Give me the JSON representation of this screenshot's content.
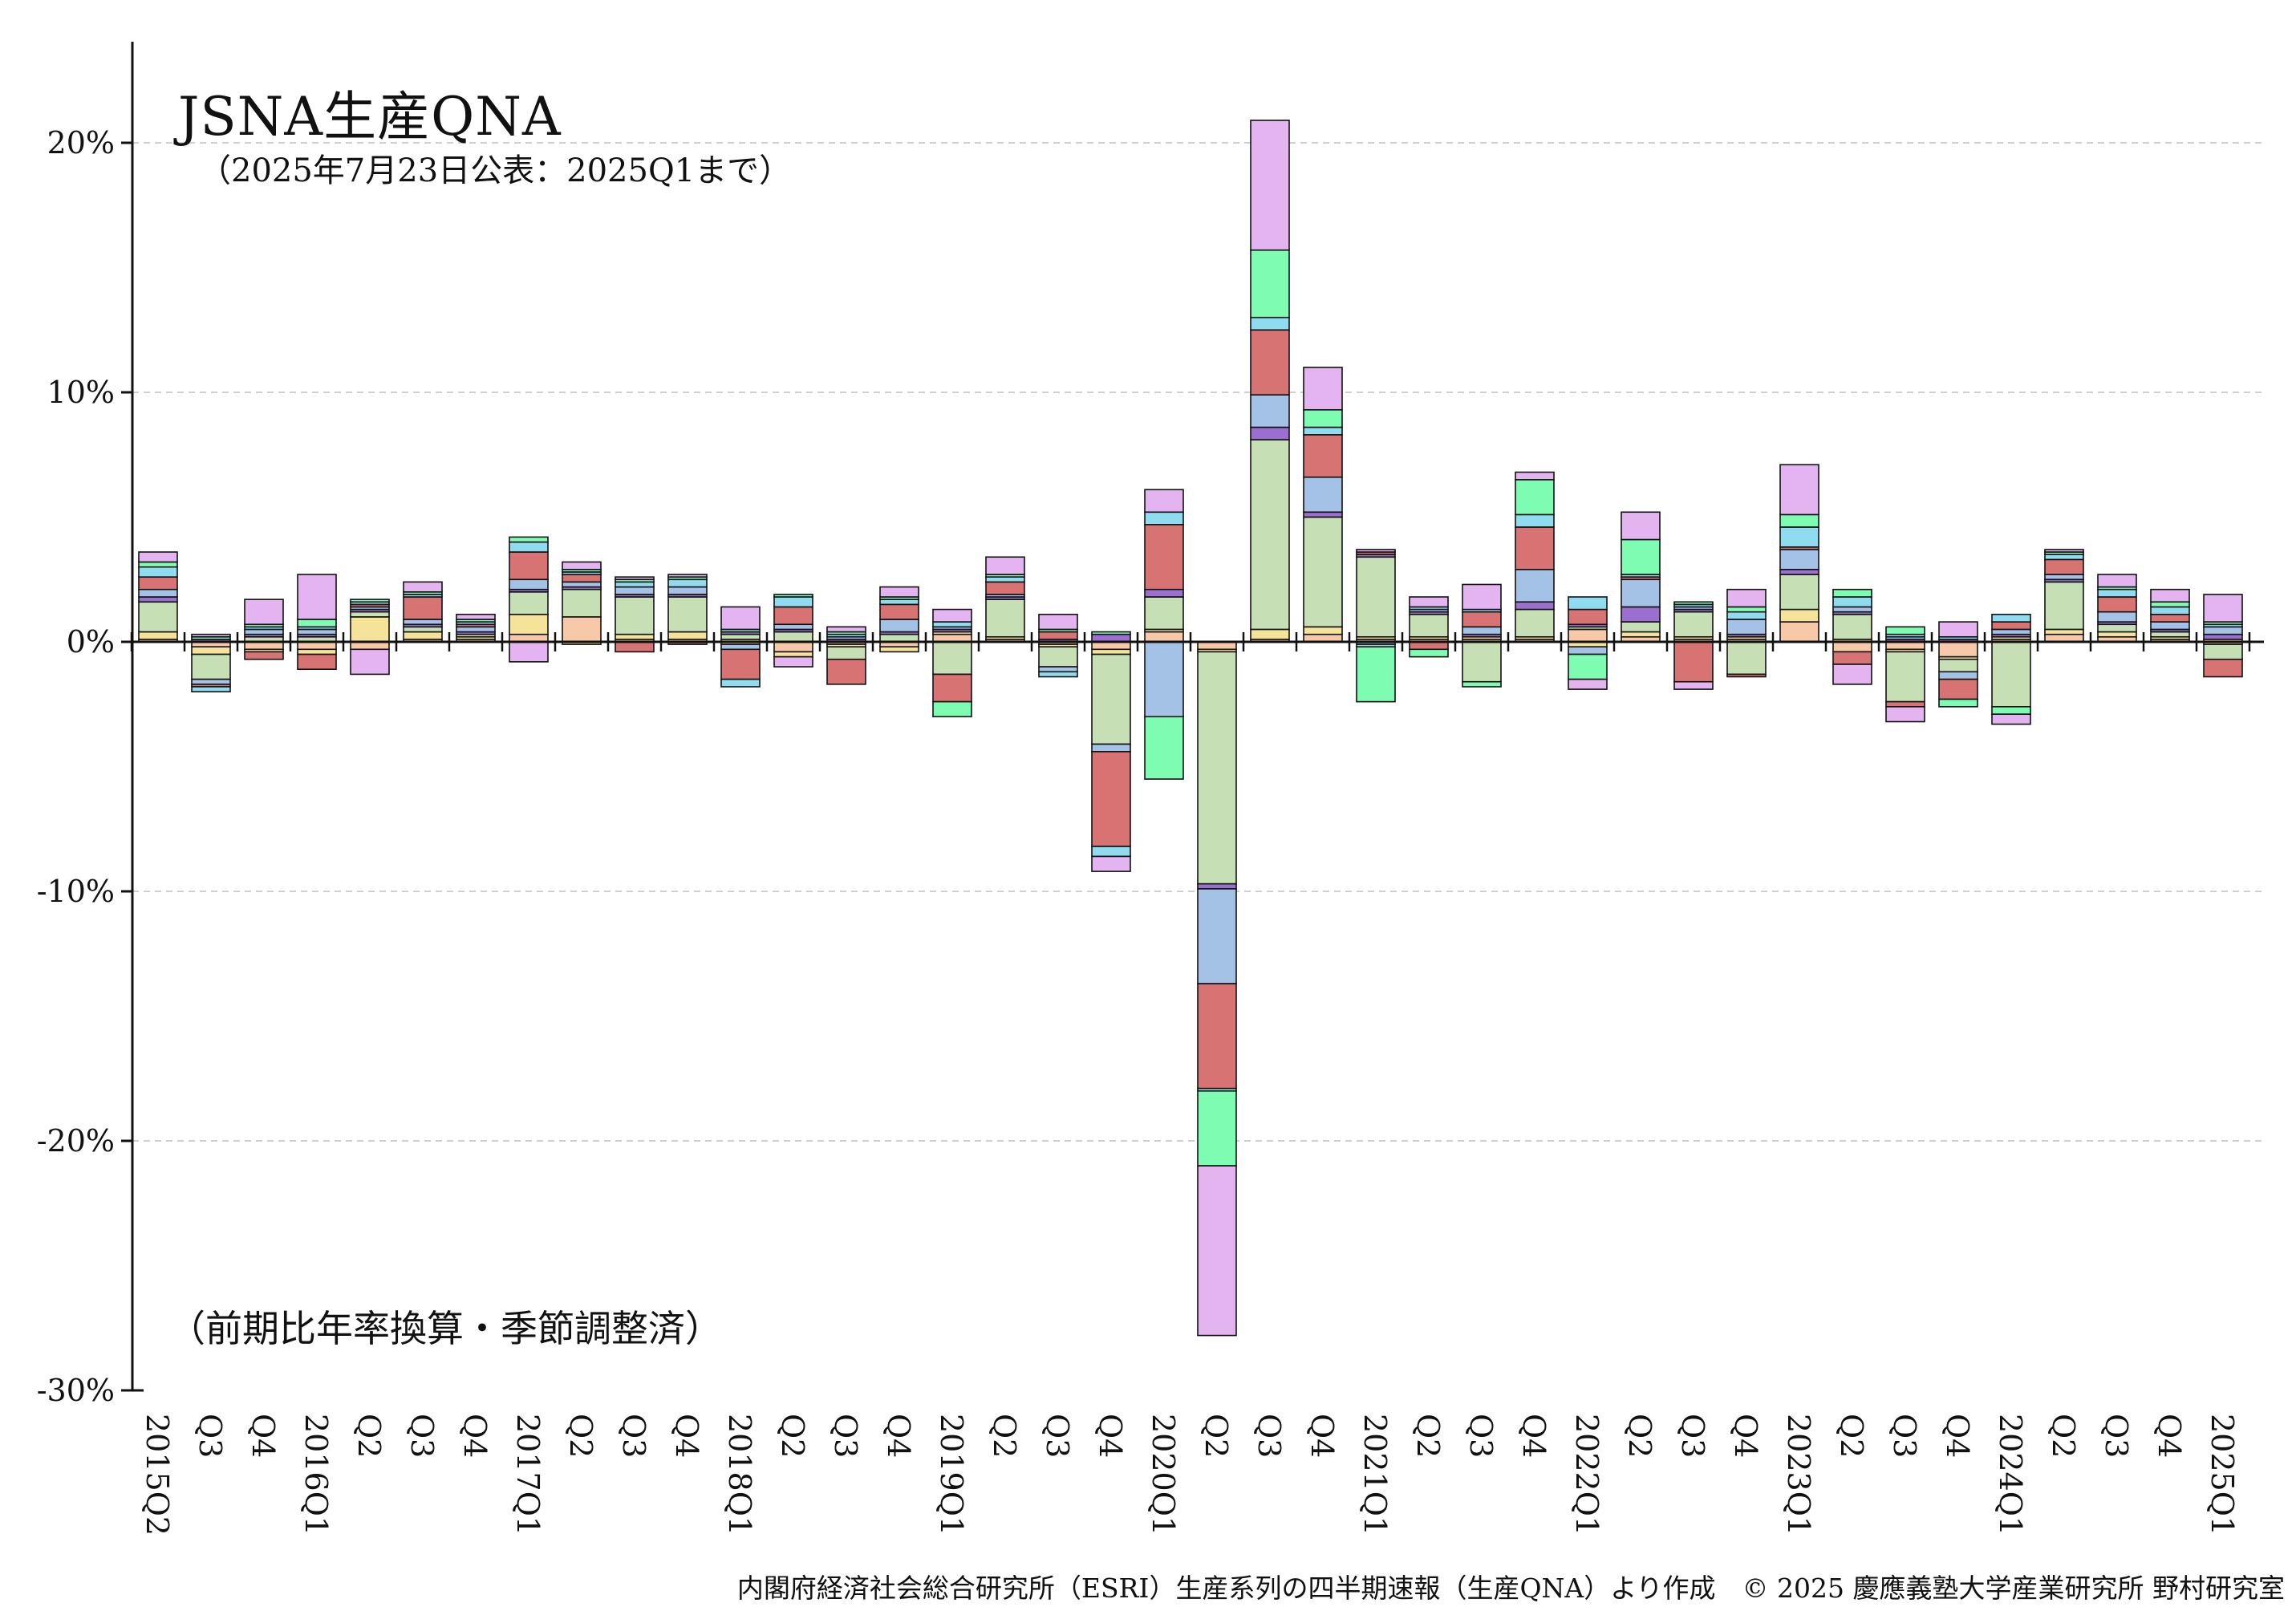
{
  "title": "JSNA生産QNA",
  "subtitle": "（2025年7月23日公表：2025Q1まで）",
  "note": "（前期比年率換算・季節調整済）",
  "source": "内閣府経済社会総合研究所（ESRI）生産系列の四半期速報（生産QNA）より作成　© 2025 慶應義塾大学産業研究所 野村研究室",
  "chart_data": {
    "type": "bar",
    "stacked": true,
    "grid": true,
    "ylim": [
      -30,
      24
    ],
    "yticks": [
      20,
      10,
      0,
      -10,
      -20,
      -30
    ],
    "ytick_labels": [
      "20%",
      "10%",
      "0%",
      "-10%",
      "-20%",
      "-30%"
    ],
    "categories": [
      "2015Q2",
      "Q3",
      "Q4",
      "2016Q1",
      "Q2",
      "Q3",
      "Q4",
      "2017Q1",
      "Q2",
      "Q3",
      "Q4",
      "2018Q1",
      "Q2",
      "Q3",
      "Q4",
      "2019Q1",
      "Q2",
      "Q3",
      "Q4",
      "2020Q1",
      "Q2",
      "Q3",
      "Q4",
      "2021Q1",
      "Q2",
      "Q3",
      "Q4",
      "2022Q1",
      "Q2",
      "Q3",
      "Q4",
      "2023Q1",
      "Q2",
      "Q3",
      "Q4",
      "2024Q1",
      "Q2",
      "Q3",
      "Q4",
      "2025Q1"
    ],
    "colors": [
      "#f7c9a8",
      "#f5e39a",
      "#c6dfb4",
      "#9a6fd0",
      "#a3c2e6",
      "#d77373",
      "#8fdcf0",
      "#7dfcb2",
      "#e3b4f0"
    ],
    "series": [
      {
        "values": [
          0.1,
          -0.2,
          -0.3,
          -0.3,
          -0.3,
          0.1,
          0.1,
          0.3,
          1.0,
          0.1,
          0.1,
          -0.1,
          -0.4,
          -0.1,
          -0.2,
          0.3,
          0.1,
          -0.1,
          -0.3,
          0.4,
          -0.3,
          0.1,
          0.3,
          0.1,
          0.1,
          0.1,
          0.1,
          0.5,
          0.2,
          0.1,
          0.1,
          0.8,
          -0.4,
          -0.3,
          -0.6,
          0.1,
          0.3,
          0.2,
          0.1,
          -0.1
        ]
      },
      {
        "values": [
          0.3,
          -0.3,
          -0.1,
          -0.2,
          1.0,
          0.3,
          0.1,
          0.8,
          -0.1,
          0.2,
          0.3,
          0.1,
          -0.2,
          -0.1,
          -0.2,
          0.1,
          0.1,
          -0.1,
          -0.2,
          0.1,
          -0.1,
          0.4,
          0.3,
          0.1,
          0.1,
          0.1,
          0.1,
          -0.2,
          0.2,
          0.1,
          0.1,
          0.5,
          0.1,
          -0.1,
          -0.1,
          0.1,
          0.2,
          0.2,
          0.1,
          0.1
        ]
      },
      {
        "values": [
          1.2,
          -1.0,
          0.2,
          0.2,
          0.2,
          0.2,
          0.1,
          0.9,
          1.1,
          1.5,
          1.4,
          0.2,
          0.4,
          -0.5,
          0.3,
          -1.3,
          1.5,
          -0.8,
          -3.6,
          1.3,
          -9.3,
          7.6,
          4.4,
          3.2,
          0.9,
          -1.6,
          1.1,
          0.1,
          0.4,
          1.0,
          -1.3,
          1.4,
          1.0,
          -2.0,
          -0.5,
          -2.6,
          1.9,
          0.3,
          0.2,
          -0.6
        ]
      },
      {
        "values": [
          0.2,
          0.1,
          0.1,
          0.1,
          0.1,
          0.1,
          0.1,
          0.1,
          0.1,
          0.1,
          0.1,
          0.1,
          0.1,
          0.1,
          0.1,
          0.1,
          0.1,
          0.1,
          0.3,
          0.3,
          -0.2,
          0.5,
          0.2,
          0.1,
          0.1,
          0.1,
          0.3,
          0.1,
          0.6,
          0.1,
          0.1,
          0.2,
          0.1,
          0.1,
          0.1,
          0.1,
          0.1,
          0.1,
          0.1,
          0.2
        ]
      },
      {
        "values": [
          0.3,
          -0.2,
          0.2,
          0.2,
          0.1,
          0.2,
          0.2,
          0.4,
          0.2,
          0.3,
          0.3,
          -0.2,
          0.2,
          0.1,
          0.5,
          0.1,
          0.1,
          -0.2,
          -0.3,
          -3.0,
          -3.8,
          1.3,
          1.4,
          -0.1,
          0.1,
          0.3,
          1.3,
          -0.3,
          1.1,
          0.1,
          0.6,
          0.8,
          0.2,
          0.1,
          -0.3,
          0.2,
          0.2,
          0.4,
          0.3,
          0.3
        ]
      },
      {
        "values": [
          0.5,
          -0.1,
          -0.3,
          -0.6,
          0.1,
          0.9,
          0.1,
          1.1,
          0.3,
          -0.4,
          -0.1,
          -1.2,
          0.7,
          -1.0,
          0.6,
          -1.1,
          0.5,
          0.3,
          -3.8,
          2.6,
          -4.2,
          2.6,
          1.7,
          0.1,
          -0.3,
          0.6,
          1.7,
          0.6,
          0.1,
          -1.6,
          -0.1,
          0.1,
          -0.5,
          -0.2,
          -0.8,
          0.3,
          0.6,
          0.6,
          0.3,
          -0.7
        ]
      },
      {
        "values": [
          0.4,
          -0.2,
          0.1,
          0.1,
          0.1,
          0.1,
          0.1,
          0.4,
          0.1,
          0.2,
          0.3,
          -0.3,
          0.4,
          0.1,
          0.2,
          0.2,
          0.2,
          -0.2,
          -0.4,
          0.5,
          -0.1,
          0.5,
          0.3,
          -0.1,
          0.1,
          0.1,
          0.5,
          0.5,
          0.1,
          0.1,
          0.3,
          0.8,
          0.4,
          0.1,
          0.1,
          0.3,
          0.2,
          0.3,
          0.3,
          0.1
        ]
      },
      {
        "values": [
          0.2,
          0.1,
          0.1,
          0.3,
          0.1,
          0.1,
          0.1,
          0.2,
          0.1,
          0.1,
          0.1,
          0.1,
          0.1,
          0.1,
          0.1,
          -0.6,
          0.1,
          0.1,
          0.1,
          -2.5,
          -3.0,
          2.7,
          0.7,
          -2.2,
          -0.3,
          -0.2,
          1.4,
          -1.0,
          1.4,
          0.1,
          0.2,
          0.5,
          0.3,
          0.3,
          -0.3,
          -0.3,
          0.1,
          0.1,
          0.2,
          0.1
        ]
      },
      {
        "values": [
          0.4,
          0.1,
          1.0,
          1.8,
          -1.0,
          0.4,
          0.2,
          -0.8,
          0.3,
          0.1,
          0.1,
          0.9,
          -0.4,
          0.2,
          0.4,
          0.5,
          0.7,
          0.6,
          -0.6,
          0.9,
          -6.8,
          5.2,
          1.7,
          0.1,
          0.4,
          1.0,
          0.3,
          -0.4,
          1.1,
          -0.3,
          0.7,
          2.0,
          -0.8,
          -0.6,
          0.6,
          -0.4,
          0.1,
          0.5,
          0.5,
          1.1
        ]
      }
    ]
  }
}
